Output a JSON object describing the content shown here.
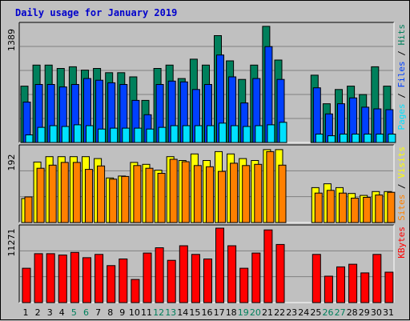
{
  "chart_data": {
    "type": "bar",
    "title": "Daily usage for January 2019",
    "days": [
      "1",
      "2",
      "3",
      "4",
      "5",
      "6",
      "7",
      "8",
      "9",
      "10",
      "11",
      "12",
      "13",
      "14",
      "15",
      "16",
      "17",
      "18",
      "19",
      "20",
      "21",
      "22",
      "23",
      "24",
      "25",
      "26",
      "27",
      "28",
      "29",
      "30",
      "31"
    ],
    "weekend_days": [
      "5",
      "6",
      "12",
      "13",
      "19",
      "20",
      "26",
      "27"
    ],
    "colors": {
      "background": "#C0C0C0",
      "plot_background": "#C0C0C0",
      "title": "#0000CC",
      "hits": "#00805C",
      "files": "#0040FF",
      "pages": "#00E0FF",
      "visits": "#FFFF00",
      "sites": "#FF8000",
      "kbytes": "#FF0000",
      "weekday_label": "#000000",
      "weekend_label": "#00805C"
    },
    "panels": [
      {
        "name": "hits-files-pages",
        "ymax_label": "1389",
        "ymax": 1389,
        "legend": [
          {
            "text": "Pages",
            "color": "#00E0FF"
          },
          {
            "text": " / ",
            "color": "#000000"
          },
          {
            "text": "Files",
            "color": "#0040FF"
          },
          {
            "text": " / ",
            "color": "#000000"
          },
          {
            "text": "Hits",
            "color": "#00805C"
          }
        ],
        "series": [
          {
            "name": "Hits",
            "color": "#00805C",
            "values": [
              670,
              920,
              920,
              880,
              900,
              860,
              880,
              830,
              830,
              780,
              500,
              880,
              920,
              760,
              990,
              920,
              1270,
              970,
              750,
              920,
              1380,
              980,
              0,
              0,
              800,
              460,
              630,
              670,
              570,
              900,
              670
            ]
          },
          {
            "name": "Files",
            "color": "#0040FF",
            "values": [
              480,
              690,
              690,
              660,
              690,
              760,
              740,
              710,
              690,
              500,
              330,
              690,
              730,
              720,
              630,
              690,
              1040,
              780,
              470,
              760,
              1140,
              750,
              0,
              0,
              650,
              340,
              460,
              530,
              420,
              400,
              390
            ]
          },
          {
            "name": "Pages",
            "color": "#00E0FF",
            "values": [
              90,
              180,
              200,
              190,
              210,
              200,
              160,
              170,
              170,
              170,
              160,
              180,
              200,
              200,
              200,
              200,
              230,
              200,
              190,
              200,
              210,
              240,
              0,
              0,
              100,
              80,
              100,
              100,
              100,
              100,
              100
            ]
          }
        ]
      },
      {
        "name": "visits-sites",
        "ymax_label": "192",
        "ymax": 192,
        "legend": [
          {
            "text": "Sites",
            "color": "#FF8000"
          },
          {
            "text": " / ",
            "color": "#000000"
          },
          {
            "text": "Visits",
            "color": "#FFFF00"
          }
        ],
        "series": [
          {
            "name": "Visits",
            "color": "#FFFF00",
            "values": [
              62,
              156,
              170,
              170,
              170,
              170,
              165,
              115,
              120,
              155,
              150,
              135,
              170,
              160,
              177,
              160,
              183,
              177,
              165,
              160,
              188,
              188,
              0,
              0,
              90,
              100,
              90,
              75,
              70,
              80,
              80
            ]
          },
          {
            "name": "Sites",
            "color": "#FF8000",
            "values": [
              66,
              140,
              148,
              155,
              155,
              137,
              146,
              112,
              119,
              147,
              140,
              127,
              163,
              157,
              147,
              144,
              132,
              153,
              147,
              150,
              183,
              148,
              0,
              0,
              76,
              83,
              76,
              63,
              65,
              71,
              78
            ]
          }
        ]
      },
      {
        "name": "kbytes",
        "ymax_label": "11271",
        "ymax": 11271,
        "legend": [
          {
            "text": "KBytes",
            "color": "#FF0000"
          }
        ],
        "series": [
          {
            "name": "KBytes",
            "color": "#FF0000",
            "values": [
              5200,
              7400,
              7400,
              7200,
              7600,
              6800,
              7300,
              5600,
              6600,
              3500,
              7500,
              8300,
              6400,
              8600,
              7300,
              6600,
              11271,
              8600,
              5200,
              7500,
              11000,
              8800,
              0,
              0,
              7300,
              4000,
              5400,
              5800,
              4500,
              7300,
              4600
            ]
          }
        ]
      }
    ]
  }
}
